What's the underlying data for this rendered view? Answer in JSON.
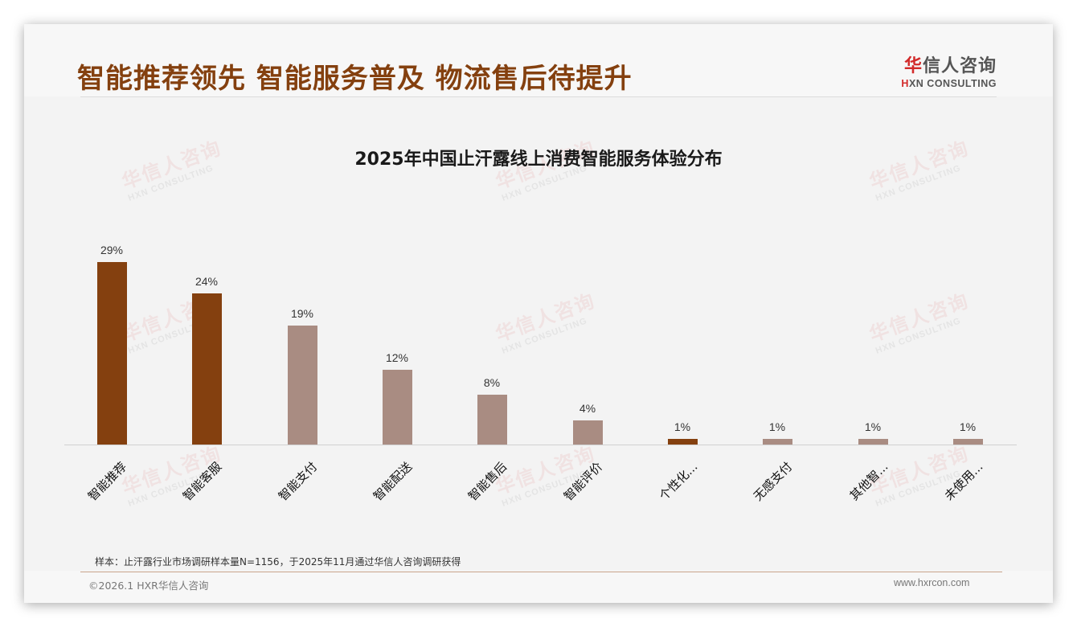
{
  "header": {
    "headline": "智能推荐领先 智能服务普及 物流售后待提升",
    "logo_cn_hua": "华",
    "logo_cn_rest": "信人咨询",
    "logo_en_h": "H",
    "logo_en_rest": "XN CONSULTING"
  },
  "watermark": {
    "cn": "华信人咨询",
    "en": "HXN CONSULTING"
  },
  "colors": {
    "highlight": "#84400f",
    "normal": "#a98c82",
    "headline": "#84400f"
  },
  "chart_data": {
    "type": "bar",
    "title": "2025年中国止汗露线上消费智能服务体验分布",
    "categories": [
      "智能推荐",
      "智能客服",
      "智能支付",
      "智能配送",
      "智能售后",
      "智能评价",
      "个性化...",
      "无感支付",
      "其他智...",
      "未使用..."
    ],
    "values": [
      29,
      24,
      19,
      12,
      8,
      4,
      1,
      1,
      1,
      1
    ],
    "value_labels": [
      "29%",
      "24%",
      "19%",
      "12%",
      "8%",
      "4%",
      "1%",
      "1%",
      "1%",
      "1%"
    ],
    "highlighted": [
      true,
      true,
      false,
      false,
      false,
      false,
      true,
      false,
      false,
      false
    ],
    "xlabel": "",
    "ylabel": "",
    "ylim": [
      0,
      30
    ],
    "unit": "%",
    "grid": false,
    "legend": null
  },
  "footer": {
    "note": "样本：止汗露行业市场调研样本量N=1156，于2025年11月通过华信人咨询调研获得",
    "copyright": "©2026.1 HXR华信人咨询",
    "website": "www.hxrcon.com"
  }
}
